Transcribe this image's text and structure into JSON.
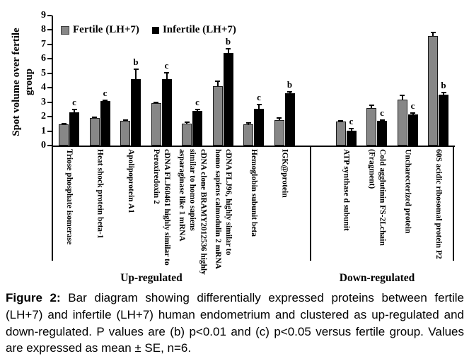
{
  "figure": {
    "caption": {
      "label": "Figure 2:",
      "text": " Bar diagram showing differentially expressed proteins between fertile (LH+7) and infertile (LH+7) human endometrium and clustered as up-regulated and down-regulated. P values are (b) p<0.01 and (c) p<0.05 versus fertile group. Values are expressed as mean ± SE, n=6."
    }
  },
  "chart_data": {
    "type": "bar",
    "title": "",
    "ylabel": "Spot volume over fertile\ngroup",
    "xlabel": "",
    "ylim": [
      0,
      9
    ],
    "yticks": [
      0,
      1,
      2,
      3,
      4,
      5,
      6,
      7,
      8,
      9
    ],
    "grid": false,
    "legend_position": "top-left-inside",
    "colors": {
      "fertile_bar": "#878787",
      "infertile_bar": "#000000",
      "axis": "#000000"
    },
    "legend": [
      {
        "name": "Fertile (LH+7)",
        "color": "#878787"
      },
      {
        "name": "Infertile (LH+7)",
        "color": "#000000"
      }
    ],
    "categories": [
      "Triose phosphate isomerase",
      "Heat shock protein beta-1",
      "Apolipoprotein A1",
      "cDNA FLJ60461 highly similar to\nPeroxiredoxin 2",
      "cDNA clone BRAMY2012536 highly\nsimilar to homo sapiens\nasparaginase like 1 mRNA",
      "cDNA FLJ96, highly similar to\nhomo sapiens calmodulin 2 mRNA",
      "Hemoglobin subunit beta",
      "IGK@protein",
      "ATP synthase d subunit",
      "Cold agglutinin FS-2Lchain\n(Fragment)",
      "Uncharecterized protein",
      "60S acidic ribosomal protein P2"
    ],
    "series": [
      {
        "name": "Fertile (LH+7)",
        "values": [
          1.45,
          1.9,
          1.7,
          2.95,
          1.5,
          4.1,
          1.45,
          1.75,
          1.65,
          2.6,
          3.2,
          7.6
        ],
        "errors": [
          0.05,
          0.12,
          0.05,
          0.1,
          0.15,
          0.4,
          0.15,
          0.2,
          0.1,
          0.25,
          0.3,
          0.3
        ]
      },
      {
        "name": "Infertile (LH+7)",
        "values": [
          2.3,
          3.1,
          4.6,
          4.6,
          2.4,
          6.4,
          2.55,
          3.6,
          1.05,
          1.7,
          2.15,
          3.5
        ],
        "errors": [
          0.25,
          0.1,
          0.75,
          0.5,
          0.15,
          0.35,
          0.35,
          0.15,
          0.15,
          0.1,
          0.15,
          0.2
        ]
      }
    ],
    "significance_vs_fertile": [
      "c",
      "c",
      "b",
      "c",
      "c",
      "b",
      "c",
      "b",
      "c",
      "c",
      "c",
      "b"
    ],
    "groups": [
      {
        "label": "Up-regulated",
        "category_start": 0,
        "category_end": 7
      },
      {
        "label": "Down-regulated",
        "category_start": 8,
        "category_end": 11
      }
    ]
  }
}
